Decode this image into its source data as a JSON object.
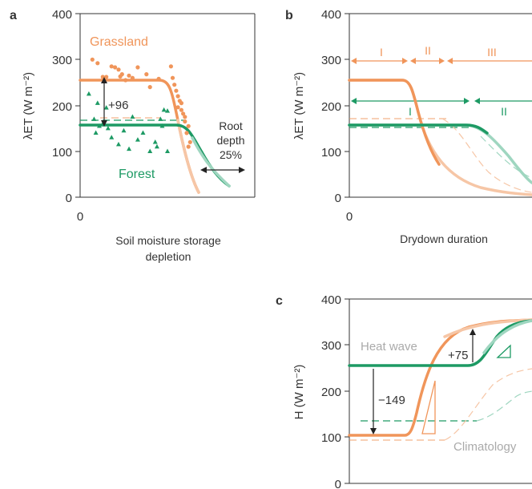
{
  "colors": {
    "grass": "#f0955a",
    "grass_light": "#f6c6a6",
    "forest": "#1d9a64",
    "forest_light": "#9fd6c0",
    "axis": "#333333",
    "text": "#333333",
    "muted": "#aaaaaa"
  },
  "chart_data": [
    {
      "panel": "a",
      "type": "scatter",
      "ylabel": "λET (W m⁻²)",
      "xlabel_lines": [
        "Soil moisture storage",
        "depletion"
      ],
      "ylim": [
        0,
        400
      ],
      "yticks": [
        "0",
        "100",
        "200",
        "300",
        "400"
      ],
      "xticks": [
        "0"
      ],
      "series": [
        {
          "name": "Grassland",
          "baseline": 255,
          "points": [
            [
              0.07,
              300
            ],
            [
              0.1,
              292
            ],
            [
              0.13,
              262
            ],
            [
              0.15,
              262
            ],
            [
              0.18,
              285
            ],
            [
              0.2,
              283
            ],
            [
              0.22,
              278
            ],
            [
              0.23,
              263
            ],
            [
              0.24,
              268
            ],
            [
              0.26,
              255
            ],
            [
              0.28,
              265
            ],
            [
              0.3,
              260
            ],
            [
              0.33,
              283
            ],
            [
              0.38,
              268
            ],
            [
              0.4,
              240
            ],
            [
              0.45,
              258
            ],
            [
              0.52,
              285
            ],
            [
              0.53,
              260
            ],
            [
              0.54,
              245
            ],
            [
              0.55,
              232
            ],
            [
              0.56,
              220
            ],
            [
              0.57,
              210
            ],
            [
              0.58,
              205
            ],
            [
              0.56,
              196
            ],
            [
              0.58,
              190
            ],
            [
              0.59,
              182
            ],
            [
              0.6,
              175
            ],
            [
              0.6,
              165
            ],
            [
              0.62,
              155
            ],
            [
              0.61,
              140
            ],
            [
              0.63,
              120
            ],
            [
              0.62,
              110
            ]
          ]
        },
        {
          "name": "Forest",
          "baseline": 158,
          "points": [
            [
              0.05,
              225
            ],
            [
              0.1,
              205
            ],
            [
              0.13,
              160
            ],
            [
              0.15,
              195
            ],
            [
              0.08,
              170
            ],
            [
              0.11,
              155
            ],
            [
              0.16,
              150
            ],
            [
              0.18,
              130
            ],
            [
              0.22,
              115
            ],
            [
              0.28,
              105
            ],
            [
              0.36,
              140
            ],
            [
              0.4,
              100
            ],
            [
              0.43,
              120
            ],
            [
              0.46,
              170
            ],
            [
              0.48,
              190
            ],
            [
              0.5,
              188
            ],
            [
              0.47,
              155
            ],
            [
              0.44,
              110
            ],
            [
              0.5,
              100
            ],
            [
              0.33,
              125
            ],
            [
              0.25,
              145
            ],
            [
              0.3,
              175
            ],
            [
              0.09,
              140
            ]
          ]
        }
      ],
      "annotations": {
        "delta": "+96",
        "root_line1": "Root",
        "root_line2": "depth",
        "root_pct": "25%"
      }
    },
    {
      "panel": "b",
      "type": "line",
      "ylabel": "λET (W m⁻²)",
      "xlabel": "Drydown duration",
      "ylim": [
        0,
        400
      ],
      "yticks": [
        "0",
        "100",
        "200",
        "300",
        "400"
      ],
      "xticks": [
        "0"
      ],
      "grass_stages": [
        "I",
        "II",
        "III"
      ],
      "forest_stages": [
        "I",
        "II"
      ],
      "series": [
        {
          "name": "Grassland",
          "start": 255
        },
        {
          "name": "Forest",
          "start": 158
        }
      ]
    },
    {
      "panel": "c",
      "type": "line",
      "ylabel": "H (W m⁻²)",
      "ylim": [
        0,
        400
      ],
      "yticks": [
        "0",
        "100",
        "200",
        "300",
        "400"
      ],
      "labels": {
        "heat_wave": "Heat wave",
        "climatology": "Climatology",
        "delta_up": "+75",
        "delta_down": "−149"
      },
      "series": [
        {
          "name": "Grassland",
          "start": 105,
          "end": 350
        },
        {
          "name": "Forest",
          "start": 255,
          "end": 350
        }
      ]
    }
  ],
  "panel_letters": [
    "a",
    "b",
    "c"
  ]
}
